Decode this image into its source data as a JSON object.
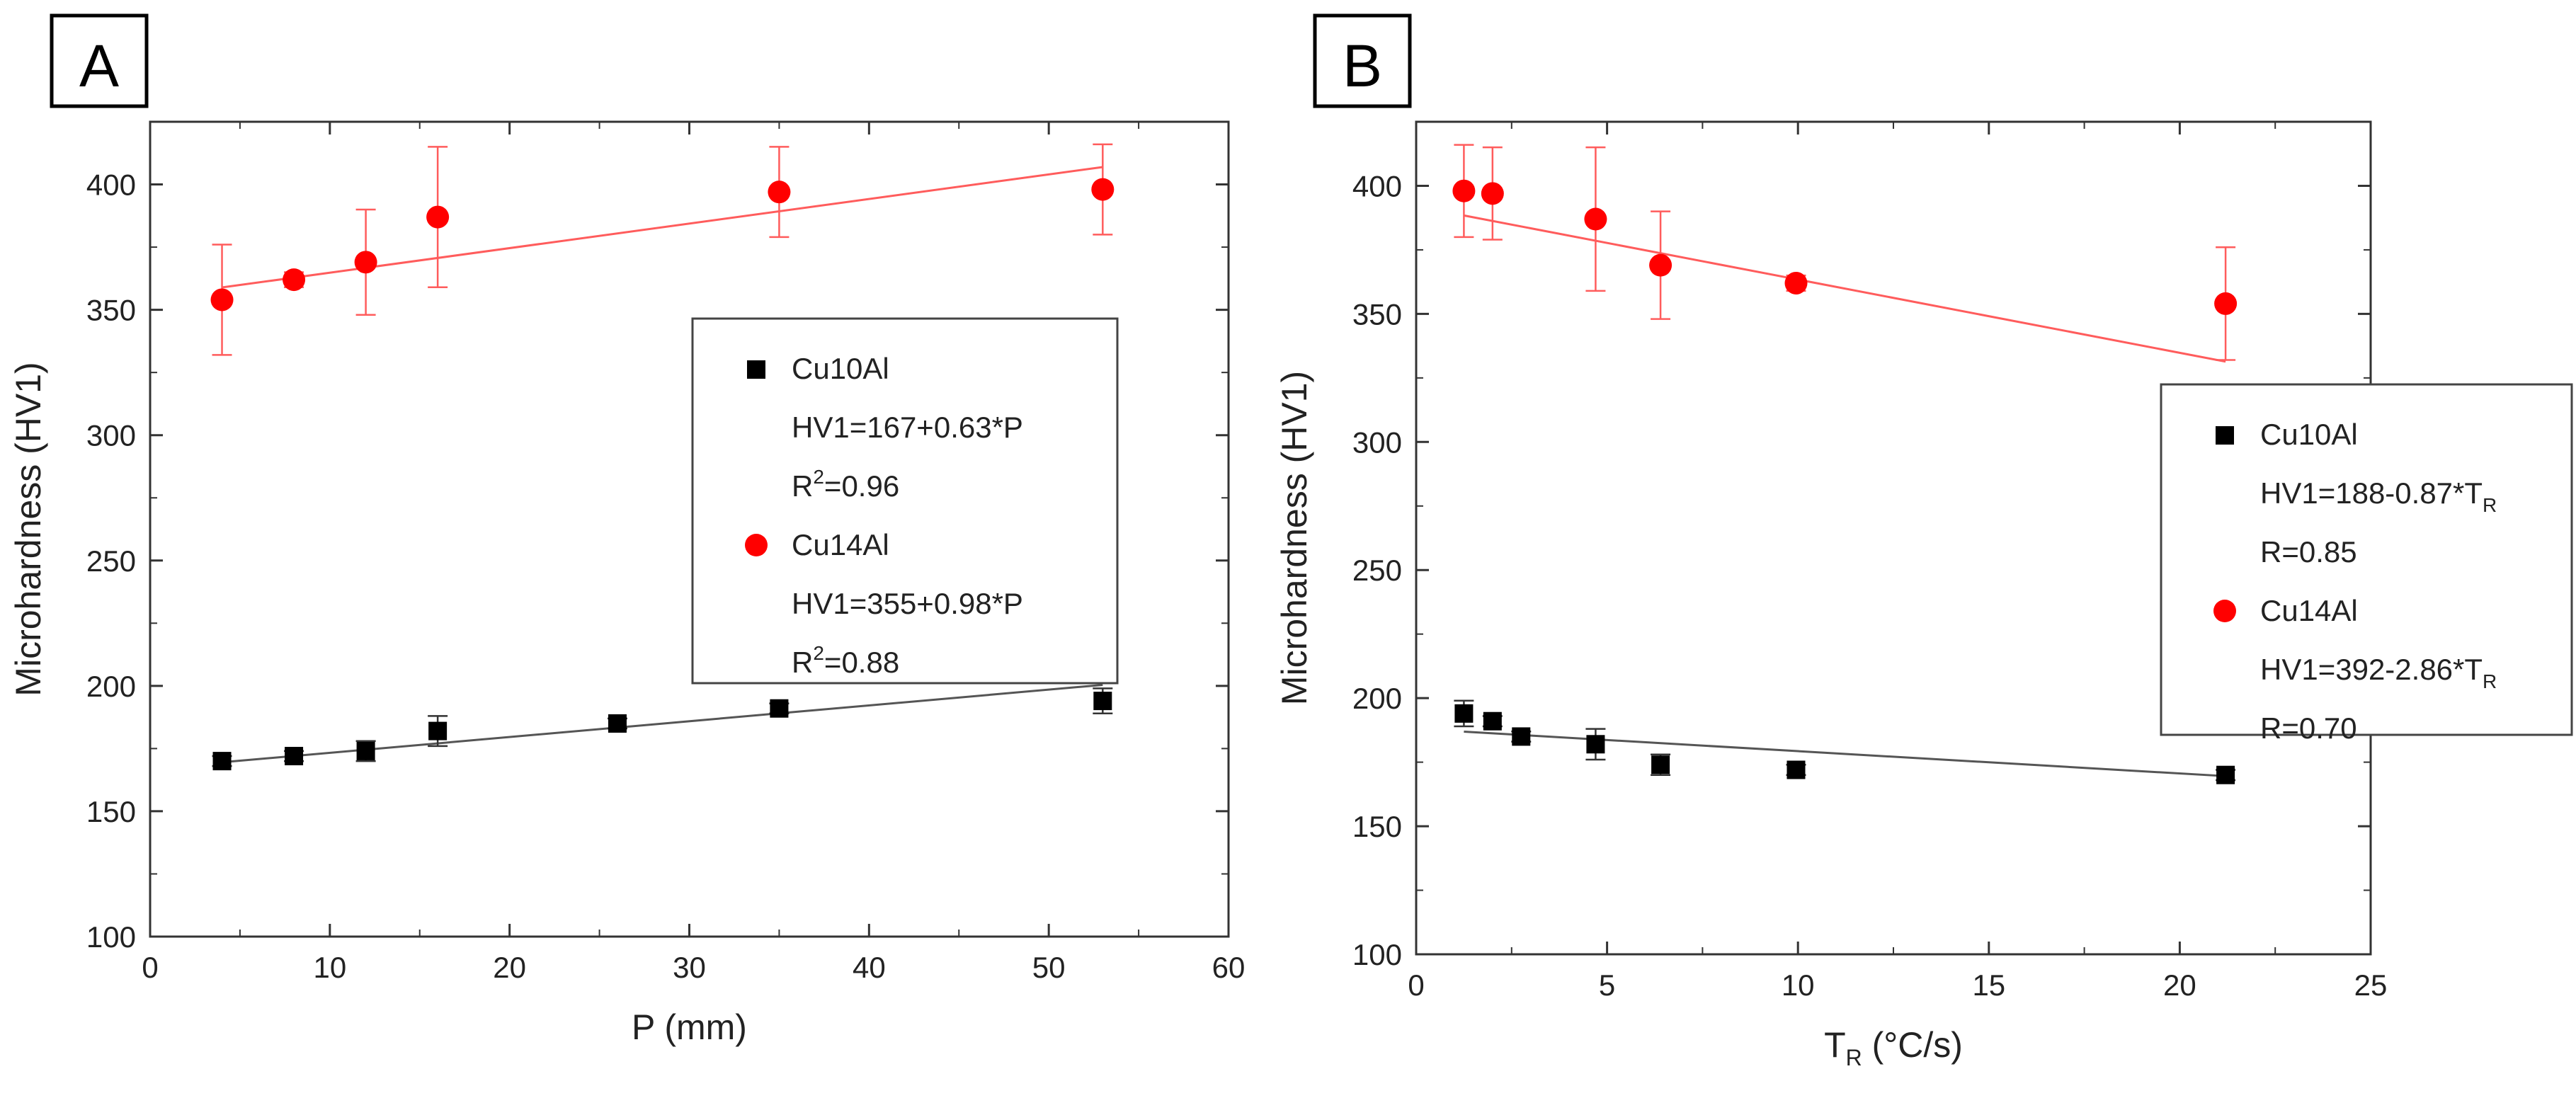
{
  "chart_data": [
    {
      "type": "scatter",
      "panel_label": "A",
      "xlabel": "P (mm)",
      "ylabel": "Microhardness (HV1)",
      "xlim": [
        0,
        60
      ],
      "ylim": [
        100,
        425
      ],
      "xticks": [
        0,
        10,
        20,
        30,
        40,
        50,
        60
      ],
      "yticks": [
        100,
        150,
        200,
        250,
        300,
        350,
        400
      ],
      "grid": false,
      "legend_position": "right",
      "series": [
        {
          "name": "Cu10Al",
          "marker": "square",
          "color": "#000000",
          "x": [
            4,
            8,
            12,
            16,
            26,
            35,
            53
          ],
          "y": [
            170,
            172,
            174,
            182,
            185,
            191,
            194
          ],
          "err": [
            2,
            2,
            4,
            6,
            2,
            2,
            5
          ],
          "fit": {
            "intercept": 167,
            "slope": 0.63
          },
          "legend_lines": [
            {
              "text": "HV1=167+0.63*P"
            },
            {
              "text": "R",
              "sup": "2",
              "tail": "=0.96"
            }
          ]
        },
        {
          "name": "Cu14Al",
          "marker": "circle",
          "color": "#ff0000",
          "x": [
            4,
            8,
            12,
            16,
            35,
            53
          ],
          "y": [
            354,
            362,
            369,
            387,
            397,
            398
          ],
          "err": [
            22,
            3,
            21,
            28,
            18,
            18
          ],
          "fit": {
            "intercept": 355,
            "slope": 0.98
          },
          "legend_lines": [
            {
              "text": "HV1=355+0.98*P"
            },
            {
              "text": "R",
              "sup": "2",
              "tail": "=0.88"
            }
          ]
        }
      ]
    },
    {
      "type": "scatter",
      "panel_label": "B",
      "xlabel": "T",
      "xlabel_sub": "R",
      "xlabel_tail": " (°C/s)",
      "ylabel": "Microhardness (HV1)",
      "xlim": [
        0,
        25
      ],
      "ylim": [
        100,
        425
      ],
      "xticks": [
        0,
        5,
        10,
        15,
        20,
        25
      ],
      "yticks": [
        100,
        150,
        200,
        250,
        300,
        350,
        400
      ],
      "grid": false,
      "legend_position": "right",
      "series": [
        {
          "name": "Cu10Al",
          "marker": "square",
          "color": "#000000",
          "x": [
            1.25,
            2,
            2.75,
            4.7,
            6.4,
            9.95,
            21.2
          ],
          "y": [
            194,
            191,
            185,
            182,
            174,
            172,
            170
          ],
          "err": [
            5,
            2,
            2,
            6,
            4,
            2,
            2
          ],
          "fit": {
            "intercept": 188,
            "slope": -0.87
          },
          "legend_lines": [
            {
              "text": "HV1=188-0.87*T",
              "sub": "R"
            },
            {
              "text": "R=0.85"
            }
          ]
        },
        {
          "name": "Cu14Al",
          "marker": "circle",
          "color": "#ff0000",
          "x": [
            1.25,
            2,
            4.7,
            6.4,
            9.95,
            21.2
          ],
          "y": [
            398,
            397,
            387,
            369,
            362,
            354
          ],
          "err": [
            18,
            18,
            28,
            21,
            3,
            22
          ],
          "fit": {
            "intercept": 392,
            "slope": -2.86
          },
          "legend_lines": [
            {
              "text": "HV1=392-2.86*T",
              "sub": "R"
            },
            {
              "text": "R=0.70"
            }
          ]
        }
      ]
    }
  ]
}
